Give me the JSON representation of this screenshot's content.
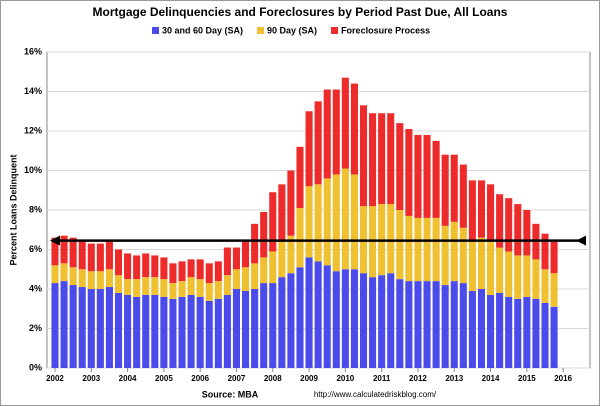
{
  "chart_data": {
    "type": "stacked-bar",
    "title": "Mortgage Delinquencies and Foreclosures by Period Past Due, All Loans",
    "y_label": "Percent Loans Delinquent",
    "source": "Source: MBA",
    "url": "http://www.calculatedriskblog.com/",
    "x": [
      2002,
      2002.25,
      2002.5,
      2002.75,
      2003,
      2003.25,
      2003.5,
      2003.75,
      2004,
      2004.25,
      2004.5,
      2004.75,
      2005,
      2005.25,
      2005.5,
      2005.75,
      2006,
      2006.25,
      2006.5,
      2006.75,
      2007,
      2007.25,
      2007.5,
      2007.75,
      2008,
      2008.25,
      2008.5,
      2008.75,
      2009,
      2009.25,
      2009.5,
      2009.75,
      2010,
      2010.25,
      2010.5,
      2010.75,
      2011,
      2011.25,
      2011.5,
      2011.75,
      2012,
      2012.25,
      2012.5,
      2012.75,
      2013,
      2013.25,
      2013.5,
      2013.75,
      2014,
      2014.25,
      2014.5,
      2014.75,
      2015,
      2015.25,
      2015.5,
      2015.75
    ],
    "series": [
      {
        "name": "30 and 60 Day (SA)",
        "color": "#4b4bec",
        "values": [
          4.3,
          4.4,
          4.2,
          4.1,
          4.0,
          4.0,
          4.1,
          3.8,
          3.7,
          3.6,
          3.7,
          3.7,
          3.6,
          3.5,
          3.6,
          3.7,
          3.6,
          3.4,
          3.5,
          3.7,
          4.0,
          3.9,
          4.0,
          4.3,
          4.3,
          4.6,
          4.8,
          5.1,
          5.6,
          5.4,
          5.2,
          4.9,
          5.0,
          5.0,
          4.8,
          4.6,
          4.7,
          4.8,
          4.5,
          4.4,
          4.4,
          4.4,
          4.4,
          4.2,
          4.4,
          4.3,
          3.9,
          4.0,
          3.7,
          3.8,
          3.6,
          3.5,
          3.6,
          3.5,
          3.3,
          3.1
        ]
      },
      {
        "name": "90 Day (SA)",
        "color": "#efc030",
        "values": [
          0.9,
          0.9,
          0.9,
          0.9,
          0.9,
          0.9,
          0.9,
          0.9,
          0.8,
          0.9,
          0.9,
          0.9,
          0.9,
          0.8,
          0.8,
          0.9,
          0.9,
          0.9,
          0.9,
          1.0,
          1.0,
          1.2,
          1.3,
          1.3,
          1.6,
          1.8,
          1.9,
          3.0,
          3.6,
          3.9,
          4.4,
          4.9,
          5.1,
          4.8,
          3.4,
          3.6,
          3.6,
          3.5,
          3.5,
          3.3,
          3.2,
          3.2,
          3.2,
          3.0,
          3.0,
          2.8,
          2.6,
          2.6,
          2.7,
          2.3,
          2.3,
          2.2,
          2.1,
          2.0,
          1.7,
          1.7
        ]
      },
      {
        "name": "Foreclosure Process",
        "color": "#ee2b2b",
        "values": [
          1.4,
          1.4,
          1.5,
          1.5,
          1.4,
          1.4,
          1.4,
          1.3,
          1.3,
          1.2,
          1.2,
          1.1,
          1.1,
          1.0,
          1.0,
          0.9,
          1.0,
          1.0,
          1.0,
          1.4,
          1.1,
          1.4,
          2.0,
          2.3,
          3.0,
          2.9,
          3.3,
          3.1,
          3.8,
          4.2,
          4.5,
          4.3,
          4.6,
          4.6,
          5.1,
          4.7,
          4.6,
          4.6,
          4.4,
          4.4,
          4.2,
          4.2,
          3.9,
          3.6,
          3.4,
          3.2,
          3.0,
          2.9,
          2.9,
          2.7,
          2.7,
          2.6,
          2.3,
          1.8,
          1.8,
          1.6
        ]
      }
    ],
    "reference_line": 6.45,
    "xlim": [
      2001.78,
      2016.74
    ],
    "xticks": [
      2002,
      2003,
      2004,
      2005,
      2006,
      2007,
      2008,
      2009,
      2010,
      2011,
      2012,
      2013,
      2014,
      2015,
      2016
    ],
    "ylim": [
      0,
      16
    ],
    "yticks": [
      {
        "value": 0,
        "label": "0%"
      },
      {
        "value": 2,
        "label": "2%"
      },
      {
        "value": 4,
        "label": "4%"
      },
      {
        "value": 6,
        "label": "6%"
      },
      {
        "value": 8,
        "label": "8%"
      },
      {
        "value": 10,
        "label": "10%"
      },
      {
        "value": 12,
        "label": "12%"
      },
      {
        "value": 14,
        "label": "14%"
      },
      {
        "value": 16,
        "label": "16%"
      }
    ],
    "grid": true
  }
}
